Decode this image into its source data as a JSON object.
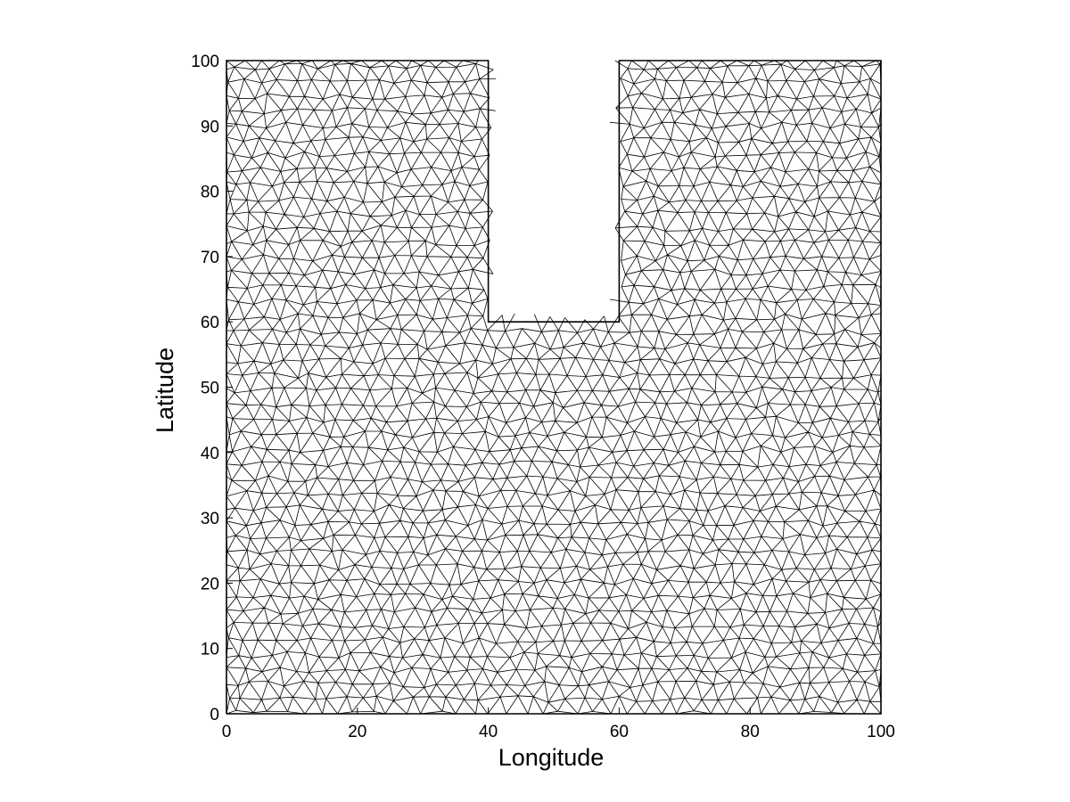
{
  "chart_data": {
    "type": "mesh",
    "xlabel": "Longitude",
    "ylabel": "Latitude",
    "xlim": [
      0,
      100
    ],
    "ylim": [
      0,
      100
    ],
    "xticks": [
      0,
      20,
      40,
      60,
      80,
      100
    ],
    "yticks": [
      0,
      10,
      20,
      30,
      40,
      50,
      60,
      70,
      80,
      90,
      100
    ],
    "domain_outline": [
      [
        0,
        0
      ],
      [
        100,
        0
      ],
      [
        100,
        100
      ],
      [
        60,
        100
      ],
      [
        60,
        60
      ],
      [
        40,
        60
      ],
      [
        40,
        100
      ],
      [
        0,
        100
      ],
      [
        0,
        0
      ]
    ],
    "mesh": "unstructured triangular mesh",
    "grid": false,
    "colors": {
      "line": "#000000",
      "background": "#ffffff"
    }
  }
}
